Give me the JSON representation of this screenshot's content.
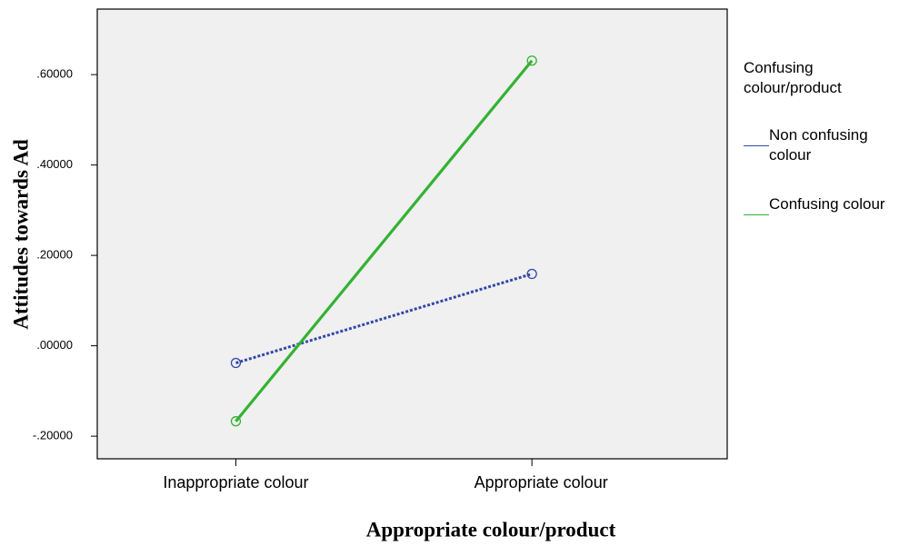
{
  "chart_data": {
    "type": "line",
    "xlabel": "Appropriate colour/product",
    "ylabel": "Attitudes towards Ad",
    "categories": [
      "Inappropriate colour",
      "Appropriate colour"
    ],
    "legend_title": "Confusing colour/product",
    "legend": "right",
    "series": [
      {
        "name": "Non confusing colour",
        "color": "#3447a8",
        "dash": "dotted",
        "values": [
          -0.038,
          0.159
        ]
      },
      {
        "name": "Confusing colour",
        "color": "#33b233",
        "dash": "solid",
        "values": [
          -0.167,
          0.631
        ]
      }
    ],
    "ylim": [
      -0.25,
      0.745
    ],
    "yticks": [
      {
        "value": -0.2,
        "label": "-.20000"
      },
      {
        "value": 0,
        "label": ".00000"
      },
      {
        "value": 0.2,
        "label": ".20000"
      },
      {
        "value": 0.4,
        "label": ".40000"
      },
      {
        "value": 0.6,
        "label": ".60000"
      }
    ]
  }
}
